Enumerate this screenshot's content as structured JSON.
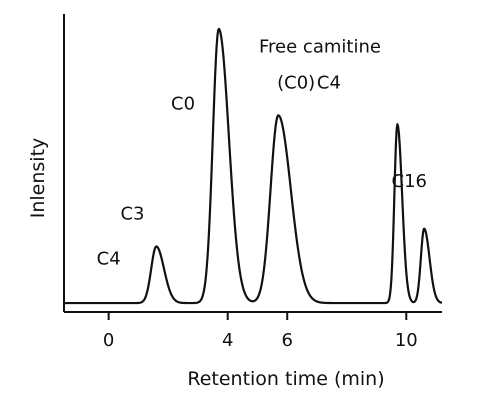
{
  "chart_data": {
    "type": "line",
    "title": "",
    "xlabel": "Retention time (min)",
    "ylabel": "Inlensity",
    "xlim": [
      -1.5,
      11.2
    ],
    "ylim": [
      0,
      100
    ],
    "x_ticks": [
      0,
      4,
      6,
      10
    ],
    "grid": false,
    "legend": "none",
    "series": [
      {
        "baseline": 3,
        "line_color": "#111111",
        "peaks": [
          {
            "label": "C4",
            "x": 1.6,
            "height": 22
          },
          {
            "label": "C0",
            "x": 3.7,
            "height": 95
          },
          {
            "label": "Free camitine (C0)",
            "x": 5.7,
            "height": 66
          },
          {
            "label": "C4",
            "x": 9.7,
            "height": 63
          },
          {
            "label": "C16",
            "x": 10.6,
            "height": 28
          }
        ]
      }
    ],
    "annotations": [
      {
        "text": "C4",
        "x": 0.0,
        "y": 16
      },
      {
        "text": "C3",
        "x": 0.8,
        "y": 31
      },
      {
        "text": "C0",
        "x": 2.5,
        "y": 68
      },
      {
        "text": "Free camitine",
        "x": 7.1,
        "y": 87
      },
      {
        "text": "(C0)",
        "x": 6.3,
        "y": 75
      },
      {
        "text": "C4",
        "x": 7.4,
        "y": 75
      },
      {
        "text": "C16",
        "x": 10.1,
        "y": 42
      }
    ]
  }
}
